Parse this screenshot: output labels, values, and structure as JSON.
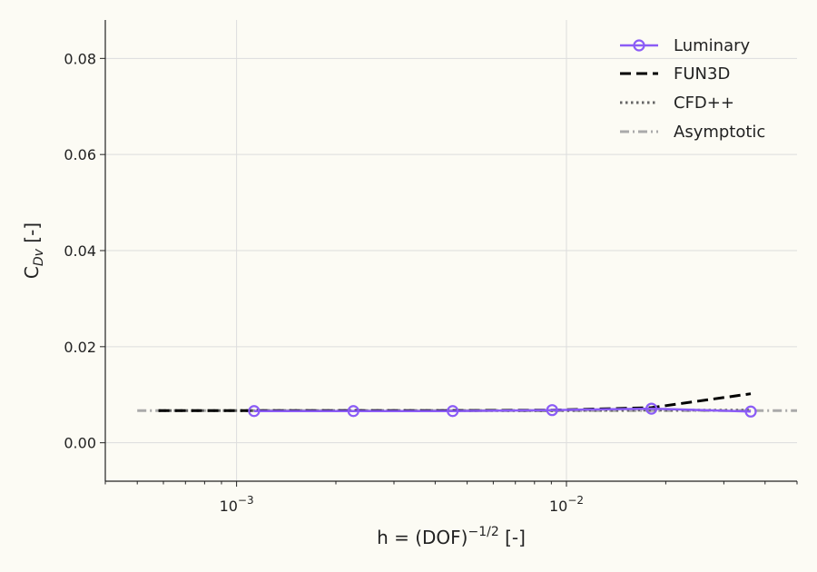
{
  "chart_data": {
    "type": "line",
    "xscale": "log",
    "xlim": [
      0.0004,
      0.05
    ],
    "ylim": [
      -0.008,
      0.088
    ],
    "x_ticks": [
      {
        "value": 0.001,
        "base": "10",
        "exp": "−3"
      },
      {
        "value": 0.01,
        "base": "10",
        "exp": "−2"
      }
    ],
    "y_ticks": [
      {
        "value": 0.0,
        "label": "0.00"
      },
      {
        "value": 0.02,
        "label": "0.02"
      },
      {
        "value": 0.04,
        "label": "0.04"
      },
      {
        "value": 0.06,
        "label": "0.06"
      },
      {
        "value": 0.08,
        "label": "0.08"
      }
    ],
    "xlabel": {
      "main": "h = (DOF)",
      "sup": "−1/2",
      "tail": " [-]"
    },
    "ylabel": {
      "main": "C",
      "sub": "Dv",
      "tail": " [-]"
    },
    "grid": true,
    "legend_position": "top-right",
    "series": [
      {
        "name": "Luminary",
        "color": "#8b5cf6",
        "style": "solid-markers",
        "x": [
          0.00113,
          0.00226,
          0.00452,
          0.00905,
          0.0181,
          0.0362
        ],
        "y": [
          0.0066,
          0.0066,
          0.0066,
          0.0068,
          0.0071,
          0.0065
        ]
      },
      {
        "name": "FUN3D",
        "color": "#000000",
        "style": "dashed",
        "x": [
          0.00058,
          0.00113,
          0.00226,
          0.00452,
          0.00905,
          0.0181,
          0.0362
        ],
        "y": [
          0.0067,
          0.0067,
          0.0067,
          0.0067,
          0.0068,
          0.0073,
          0.0102
        ]
      },
      {
        "name": "CFD++",
        "color": "#666666",
        "style": "dotted",
        "x": [
          0.00058,
          0.00113,
          0.00226,
          0.00452,
          0.00905,
          0.0181,
          0.0362
        ],
        "y": [
          0.0067,
          0.0067,
          0.0067,
          0.0067,
          0.0067,
          0.0068,
          0.0068
        ]
      },
      {
        "name": "Asymptotic",
        "color": "#aaaaaa",
        "style": "dashdot",
        "x": [
          0.0005,
          0.05
        ],
        "y": [
          0.0067,
          0.0067
        ]
      }
    ]
  }
}
